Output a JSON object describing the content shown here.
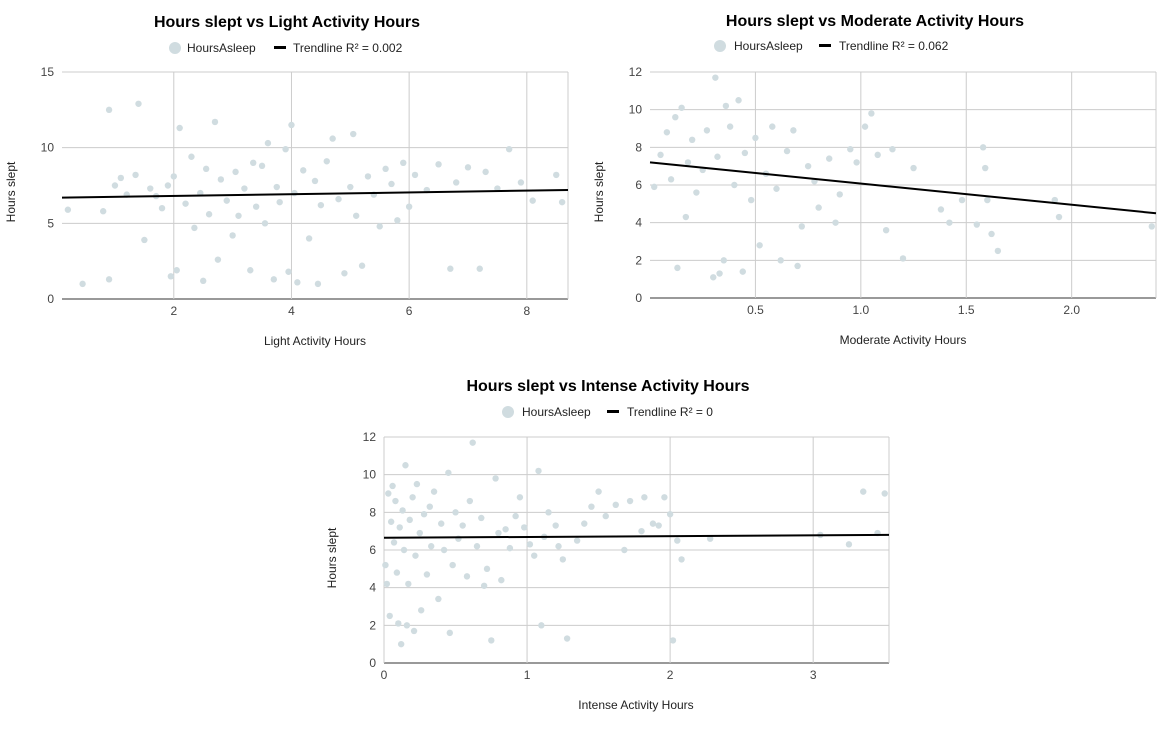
{
  "colors": {
    "points": "#d0dce0",
    "trendline": "#000000",
    "grid": "#cccccc"
  },
  "chart_data": [
    {
      "type": "scatter",
      "title": "Hours slept vs Light Activity Hours",
      "xlabel": "Light Activity Hours",
      "ylabel": "Hours slept",
      "legend": {
        "position": "top",
        "series": "HoursAsleep",
        "trendline": "Trendline R² = 0.002"
      },
      "grid": true,
      "xlim": [
        0.1,
        8.7
      ],
      "ylim": [
        0,
        15
      ],
      "xticks": [
        2,
        4,
        6,
        8
      ],
      "yticks": [
        0,
        5,
        10,
        15
      ],
      "xtick_labels": [
        "2",
        "4",
        "6",
        "8"
      ],
      "ytick_labels": [
        "0",
        "5",
        "10",
        "15"
      ],
      "trendline": {
        "x": [
          0.1,
          8.7
        ],
        "y": [
          6.7,
          7.2
        ]
      },
      "points": [
        [
          0.2,
          5.9
        ],
        [
          0.45,
          1.0
        ],
        [
          0.8,
          5.8
        ],
        [
          0.9,
          12.5
        ],
        [
          0.9,
          1.3
        ],
        [
          1.0,
          7.5
        ],
        [
          1.1,
          8.0
        ],
        [
          1.2,
          6.9
        ],
        [
          1.35,
          8.2
        ],
        [
          1.4,
          12.9
        ],
        [
          1.5,
          3.9
        ],
        [
          1.6,
          7.3
        ],
        [
          1.7,
          6.8
        ],
        [
          1.8,
          6.0
        ],
        [
          1.9,
          7.5
        ],
        [
          1.95,
          1.5
        ],
        [
          2.0,
          8.1
        ],
        [
          2.05,
          1.9
        ],
        [
          2.1,
          11.3
        ],
        [
          2.2,
          6.3
        ],
        [
          2.3,
          9.4
        ],
        [
          2.35,
          4.7
        ],
        [
          2.45,
          7.0
        ],
        [
          2.5,
          1.2
        ],
        [
          2.55,
          8.6
        ],
        [
          2.6,
          5.6
        ],
        [
          2.7,
          11.7
        ],
        [
          2.75,
          2.6
        ],
        [
          2.8,
          7.9
        ],
        [
          2.9,
          6.5
        ],
        [
          3.0,
          4.2
        ],
        [
          3.05,
          8.4
        ],
        [
          3.1,
          5.5
        ],
        [
          3.2,
          7.3
        ],
        [
          3.3,
          1.9
        ],
        [
          3.35,
          9.0
        ],
        [
          3.4,
          6.1
        ],
        [
          3.5,
          8.8
        ],
        [
          3.55,
          5.0
        ],
        [
          3.6,
          10.3
        ],
        [
          3.7,
          1.3
        ],
        [
          3.75,
          7.4
        ],
        [
          3.8,
          6.4
        ],
        [
          3.9,
          9.9
        ],
        [
          3.95,
          1.8
        ],
        [
          4.0,
          11.5
        ],
        [
          4.05,
          7.0
        ],
        [
          4.1,
          1.1
        ],
        [
          4.2,
          8.5
        ],
        [
          4.3,
          4.0
        ],
        [
          4.4,
          7.8
        ],
        [
          4.45,
          1.0
        ],
        [
          4.5,
          6.2
        ],
        [
          4.6,
          9.1
        ],
        [
          4.7,
          10.6
        ],
        [
          4.8,
          6.6
        ],
        [
          4.9,
          1.7
        ],
        [
          5.0,
          7.4
        ],
        [
          5.05,
          10.9
        ],
        [
          5.1,
          5.5
        ],
        [
          5.2,
          2.2
        ],
        [
          5.3,
          8.1
        ],
        [
          5.4,
          6.9
        ],
        [
          5.5,
          4.8
        ],
        [
          5.6,
          8.6
        ],
        [
          5.7,
          7.6
        ],
        [
          5.8,
          5.2
        ],
        [
          5.9,
          9.0
        ],
        [
          6.0,
          6.1
        ],
        [
          6.1,
          8.2
        ],
        [
          6.3,
          7.2
        ],
        [
          6.5,
          8.9
        ],
        [
          6.7,
          2.0
        ],
        [
          6.8,
          7.7
        ],
        [
          7.0,
          8.7
        ],
        [
          7.2,
          2.0
        ],
        [
          7.3,
          8.4
        ],
        [
          7.5,
          7.3
        ],
        [
          7.7,
          9.9
        ],
        [
          7.9,
          7.7
        ],
        [
          8.1,
          6.5
        ],
        [
          8.5,
          8.2
        ],
        [
          8.6,
          6.4
        ]
      ]
    },
    {
      "type": "scatter",
      "title": "Hours slept vs Moderate Activity Hours",
      "xlabel": "Moderate Activity Hours",
      "ylabel": "Hours slept",
      "legend": {
        "position": "top",
        "series": "HoursAsleep",
        "trendline": "Trendline R² = 0.062"
      },
      "grid": true,
      "xlim": [
        0,
        2.4
      ],
      "ylim": [
        0,
        12
      ],
      "xticks": [
        0.5,
        1.0,
        1.5,
        2.0
      ],
      "yticks": [
        0,
        2,
        4,
        6,
        8,
        10,
        12
      ],
      "xtick_labels": [
        "0.5",
        "1.0",
        "1.5",
        "2.0"
      ],
      "ytick_labels": [
        "0",
        "2",
        "4",
        "6",
        "8",
        "10",
        "12"
      ],
      "trendline": {
        "x": [
          0,
          2.4
        ],
        "y": [
          7.2,
          4.5
        ]
      },
      "points": [
        [
          0.02,
          5.9
        ],
        [
          0.05,
          7.6
        ],
        [
          0.08,
          8.8
        ],
        [
          0.1,
          6.3
        ],
        [
          0.12,
          9.6
        ],
        [
          0.13,
          1.6
        ],
        [
          0.15,
          10.1
        ],
        [
          0.17,
          4.3
        ],
        [
          0.18,
          7.2
        ],
        [
          0.2,
          8.4
        ],
        [
          0.22,
          5.6
        ],
        [
          0.25,
          6.8
        ],
        [
          0.27,
          8.9
        ],
        [
          0.3,
          1.1
        ],
        [
          0.31,
          11.7
        ],
        [
          0.32,
          7.5
        ],
        [
          0.33,
          1.3
        ],
        [
          0.35,
          2.0
        ],
        [
          0.36,
          10.2
        ],
        [
          0.38,
          9.1
        ],
        [
          0.4,
          6.0
        ],
        [
          0.42,
          10.5
        ],
        [
          0.44,
          1.4
        ],
        [
          0.45,
          7.7
        ],
        [
          0.48,
          5.2
        ],
        [
          0.5,
          8.5
        ],
        [
          0.52,
          2.8
        ],
        [
          0.55,
          6.6
        ],
        [
          0.58,
          9.1
        ],
        [
          0.6,
          5.8
        ],
        [
          0.62,
          2.0
        ],
        [
          0.65,
          7.8
        ],
        [
          0.68,
          8.9
        ],
        [
          0.7,
          1.7
        ],
        [
          0.72,
          3.8
        ],
        [
          0.75,
          7.0
        ],
        [
          0.78,
          6.2
        ],
        [
          0.8,
          4.8
        ],
        [
          0.85,
          7.4
        ],
        [
          0.88,
          4.0
        ],
        [
          0.9,
          5.5
        ],
        [
          0.95,
          7.9
        ],
        [
          0.98,
          7.2
        ],
        [
          1.02,
          9.1
        ],
        [
          1.05,
          9.8
        ],
        [
          1.08,
          7.6
        ],
        [
          1.12,
          3.6
        ],
        [
          1.15,
          7.9
        ],
        [
          1.2,
          2.1
        ],
        [
          1.25,
          6.9
        ],
        [
          1.38,
          4.7
        ],
        [
          1.42,
          4.0
        ],
        [
          1.48,
          5.2
        ],
        [
          1.55,
          3.9
        ],
        [
          1.58,
          8.0
        ],
        [
          1.59,
          6.9
        ],
        [
          1.6,
          5.2
        ],
        [
          1.62,
          3.4
        ],
        [
          1.65,
          2.5
        ],
        [
          1.92,
          5.2
        ],
        [
          1.94,
          4.3
        ],
        [
          2.38,
          3.8
        ]
      ]
    },
    {
      "type": "scatter",
      "title": "Hours slept vs Intense Activity Hours",
      "xlabel": "Intense Activity Hours",
      "ylabel": "Hours slept",
      "legend": {
        "position": "top",
        "series": "HoursAsleep",
        "trendline": "Trendline R² = 0"
      },
      "grid": true,
      "xlim": [
        0,
        3.53
      ],
      "ylim": [
        0,
        12
      ],
      "xticks": [
        0,
        1,
        2,
        3
      ],
      "yticks": [
        0,
        2,
        4,
        6,
        8,
        10,
        12
      ],
      "xtick_labels": [
        "0",
        "1",
        "2",
        "3"
      ],
      "ytick_labels": [
        "0",
        "2",
        "4",
        "6",
        "8",
        "10",
        "12"
      ],
      "trendline": {
        "x": [
          0,
          3.53
        ],
        "y": [
          6.65,
          6.8
        ]
      },
      "points": [
        [
          0.01,
          5.2
        ],
        [
          0.02,
          4.2
        ],
        [
          0.03,
          9.0
        ],
        [
          0.04,
          2.5
        ],
        [
          0.05,
          7.5
        ],
        [
          0.06,
          9.4
        ],
        [
          0.07,
          6.4
        ],
        [
          0.08,
          8.6
        ],
        [
          0.09,
          4.8
        ],
        [
          0.1,
          2.1
        ],
        [
          0.11,
          7.2
        ],
        [
          0.12,
          1.0
        ],
        [
          0.13,
          8.1
        ],
        [
          0.14,
          6.0
        ],
        [
          0.15,
          10.5
        ],
        [
          0.16,
          2.0
        ],
        [
          0.17,
          4.2
        ],
        [
          0.18,
          7.6
        ],
        [
          0.2,
          8.8
        ],
        [
          0.21,
          1.7
        ],
        [
          0.22,
          5.7
        ],
        [
          0.23,
          9.5
        ],
        [
          0.25,
          6.9
        ],
        [
          0.26,
          2.8
        ],
        [
          0.28,
          7.9
        ],
        [
          0.3,
          4.7
        ],
        [
          0.32,
          8.3
        ],
        [
          0.33,
          6.2
        ],
        [
          0.35,
          9.1
        ],
        [
          0.38,
          3.4
        ],
        [
          0.4,
          7.4
        ],
        [
          0.42,
          6.0
        ],
        [
          0.45,
          10.1
        ],
        [
          0.46,
          1.6
        ],
        [
          0.48,
          5.2
        ],
        [
          0.5,
          8.0
        ],
        [
          0.52,
          6.6
        ],
        [
          0.55,
          7.3
        ],
        [
          0.58,
          4.6
        ],
        [
          0.6,
          8.6
        ],
        [
          0.62,
          11.7
        ],
        [
          0.65,
          6.2
        ],
        [
          0.68,
          7.7
        ],
        [
          0.7,
          4.1
        ],
        [
          0.72,
          5.0
        ],
        [
          0.75,
          1.2
        ],
        [
          0.78,
          9.8
        ],
        [
          0.8,
          6.9
        ],
        [
          0.82,
          4.4
        ],
        [
          0.85,
          7.1
        ],
        [
          0.88,
          6.1
        ],
        [
          0.92,
          7.8
        ],
        [
          0.95,
          8.8
        ],
        [
          0.98,
          7.2
        ],
        [
          1.02,
          6.3
        ],
        [
          1.05,
          5.7
        ],
        [
          1.08,
          10.2
        ],
        [
          1.1,
          2.0
        ],
        [
          1.12,
          6.7
        ],
        [
          1.15,
          8.0
        ],
        [
          1.2,
          7.3
        ],
        [
          1.22,
          6.2
        ],
        [
          1.25,
          5.5
        ],
        [
          1.28,
          1.3
        ],
        [
          1.35,
          6.5
        ],
        [
          1.4,
          7.4
        ],
        [
          1.45,
          8.3
        ],
        [
          1.5,
          9.1
        ],
        [
          1.55,
          7.8
        ],
        [
          1.62,
          8.4
        ],
        [
          1.68,
          6.0
        ],
        [
          1.72,
          8.6
        ],
        [
          1.8,
          7.0
        ],
        [
          1.82,
          8.8
        ],
        [
          1.88,
          7.4
        ],
        [
          1.92,
          7.3
        ],
        [
          1.96,
          8.8
        ],
        [
          2.0,
          7.9
        ],
        [
          2.02,
          1.2
        ],
        [
          2.05,
          6.5
        ],
        [
          2.08,
          5.5
        ],
        [
          2.28,
          6.6
        ],
        [
          3.05,
          6.8
        ],
        [
          3.25,
          6.3
        ],
        [
          3.35,
          9.1
        ],
        [
          3.45,
          6.9
        ],
        [
          3.5,
          9.0
        ]
      ]
    }
  ]
}
